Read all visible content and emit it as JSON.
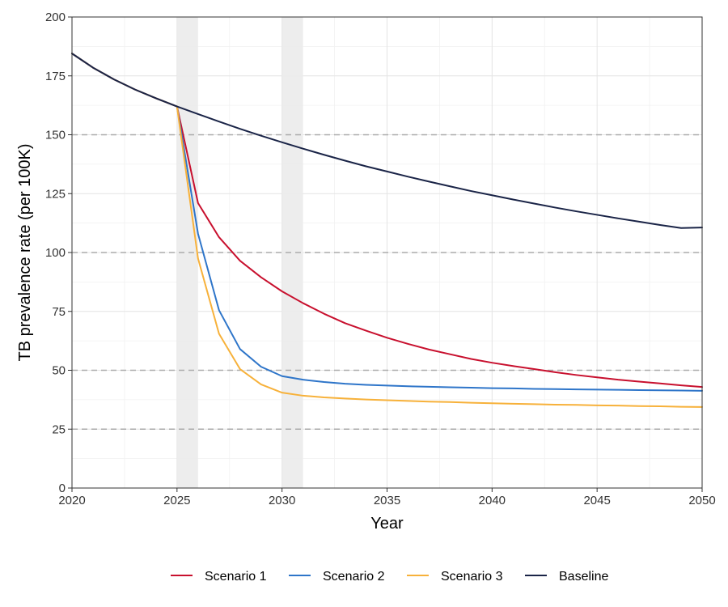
{
  "chart_data": {
    "type": "line",
    "title": "",
    "xlabel": "Year",
    "ylabel": "TB prevalence rate (per 100K)",
    "xlim": [
      2020,
      2050
    ],
    "ylim": [
      0,
      200
    ],
    "x_ticks": [
      2020,
      2025,
      2030,
      2035,
      2040,
      2045,
      2050
    ],
    "y_ticks": [
      0,
      25,
      50,
      75,
      100,
      125,
      150,
      175,
      200
    ],
    "dashed_reference_lines_y": [
      25,
      50,
      100,
      150
    ],
    "shaded_x_ranges": [
      [
        2025,
        2026
      ],
      [
        2030,
        2031
      ]
    ],
    "grid": true,
    "legend_position": "bottom",
    "x": [
      2020,
      2021,
      2022,
      2023,
      2024,
      2025,
      2026,
      2027,
      2028,
      2029,
      2030,
      2031,
      2032,
      2033,
      2034,
      2035,
      2036,
      2037,
      2038,
      2039,
      2040,
      2041,
      2042,
      2043,
      2044,
      2045,
      2046,
      2047,
      2048,
      2049,
      2050
    ],
    "series": [
      {
        "name": "Scenario 1",
        "color": "#c8102e",
        "values": [
          184.5,
          178.5,
          173.5,
          169.2,
          165.5,
          162,
          121,
          106.5,
          96.5,
          89.5,
          83.5,
          78.5,
          74,
          70,
          66.8,
          63.8,
          61.2,
          58.8,
          56.8,
          54.8,
          53.2,
          51.8,
          50.5,
          49.2,
          48,
          47,
          46,
          45.2,
          44.4,
          43.6,
          42.9
        ]
      },
      {
        "name": "Scenario 2",
        "color": "#2e75c9",
        "values": [
          184.5,
          178.5,
          173.5,
          169.2,
          165.5,
          162,
          108,
          75.5,
          59,
          51.5,
          47.5,
          46,
          45,
          44.3,
          43.8,
          43.5,
          43.2,
          43,
          42.8,
          42.6,
          42.4,
          42.3,
          42.1,
          42,
          41.9,
          41.8,
          41.7,
          41.6,
          41.5,
          41.4,
          41.3
        ]
      },
      {
        "name": "Scenario 3",
        "color": "#f7b13a",
        "values": [
          184.5,
          178.5,
          173.5,
          169.2,
          165.5,
          162,
          97.5,
          65.5,
          50.5,
          44,
          40.5,
          39.2,
          38.5,
          38,
          37.6,
          37.3,
          37,
          36.7,
          36.5,
          36.2,
          36,
          35.8,
          35.6,
          35.4,
          35.3,
          35.1,
          35,
          34.8,
          34.7,
          34.5,
          34.4
        ]
      },
      {
        "name": "Baseline",
        "color": "#1a2447",
        "values": [
          184.5,
          178.5,
          173.5,
          169.2,
          165.5,
          162,
          158.8,
          155.6,
          152.5,
          149.6,
          146.8,
          144.1,
          141.5,
          139,
          136.6,
          134.4,
          132.2,
          130.1,
          128.1,
          126.1,
          124.3,
          122.5,
          120.8,
          119.1,
          117.5,
          116,
          114.5,
          113.1,
          111.7,
          110.4,
          110.6
        ]
      }
    ]
  }
}
